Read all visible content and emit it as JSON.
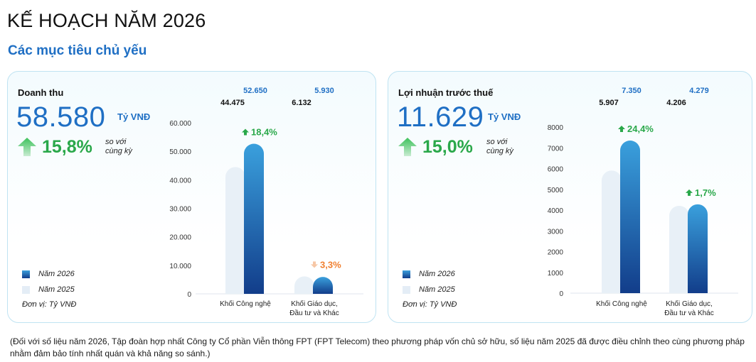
{
  "header": {
    "title": "KẾ HOẠCH NĂM 2026",
    "subtitle": "Các mục tiêu chủ yếu"
  },
  "colors": {
    "accent": "#1f6fc4",
    "growth_green": "#2aa84a",
    "growth_orange": "#f07e2e",
    "bar_2026_top": "#3aa0dd",
    "bar_2026_bottom": "#123d8a",
    "bar_2025": "#e8f0f7",
    "panel_border": "#bfe3f2"
  },
  "panels": [
    {
      "kpi_label": "Doanh thu",
      "kpi_value": "58.580",
      "kpi_unit": "Tỷ VNĐ",
      "growth": "15,8%",
      "growth_note": "so với\ncùng kỳ",
      "legend": [
        "Năm 2026",
        "Năm 2025"
      ],
      "unit_note": "Đơn vị: Tỷ VNĐ",
      "top_values": [
        {
          "v2026": "52.650",
          "v2025": "44.475"
        },
        {
          "v2026": "5.930",
          "v2025": "6.132"
        }
      ],
      "tick_labels": [
        "0",
        "10.000",
        "20.000",
        "30.000",
        "40.000",
        "50.000",
        "60.000"
      ],
      "category_labels": [
        [
          "Khối Công nghệ"
        ],
        [
          "Khối Giáo dục,",
          "Đầu tư và Khác"
        ]
      ],
      "bar_growth_labels": [
        {
          "text": "18,4%",
          "direction": "up"
        },
        {
          "text": "3,3%",
          "direction": "down"
        }
      ]
    },
    {
      "kpi_label": "Lợi nhuận trước thuế",
      "kpi_value": "11.629",
      "kpi_unit": "Tỷ VNĐ",
      "growth": "15,0%",
      "growth_note": "so với\ncùng kỳ",
      "legend": [
        "Năm 2026",
        "Năm 2025"
      ],
      "unit_note": "Đơn vị: Tỷ VNĐ",
      "top_values": [
        {
          "v2026": "7.350",
          "v2025": "5.907"
        },
        {
          "v2026": "4.279",
          "v2025": "4.206"
        }
      ],
      "tick_labels": [
        "0",
        "1000",
        "2000",
        "3000",
        "4000",
        "5000",
        "6000",
        "7000",
        "8000"
      ],
      "category_labels": [
        [
          "Khối Công nghệ"
        ],
        [
          "Khối Giáo dục,",
          "Đầu tư và Khác"
        ]
      ],
      "bar_growth_labels": [
        {
          "text": "24,4%",
          "direction": "up"
        },
        {
          "text": "1,7%",
          "direction": "up"
        }
      ]
    }
  ],
  "footnote": "(Đối với số liệu năm 2026, Tập đoàn hợp nhất Công ty Cổ phần Viễn thông FPT (FPT Telecom) theo phương pháp vốn chủ sở hữu, số liệu năm 2025 đã được điều chỉnh theo cùng phương pháp nhằm đảm bảo tính nhất quán và khả năng so sánh.)",
  "chart_data": [
    {
      "type": "bar",
      "categories": [
        "Khối Công nghệ",
        "Khối Giáo dục, Đầu tư và Khác"
      ],
      "series": [
        {
          "name": "Năm 2026",
          "values": [
            52650,
            5930
          ]
        },
        {
          "name": "Năm 2025",
          "values": [
            44475,
            6132
          ]
        }
      ],
      "ylim": [
        0,
        60000
      ],
      "grid": false,
      "legend_position": "bottom-left"
    },
    {
      "type": "bar",
      "categories": [
        "Khối Công nghệ",
        "Khối Giáo dục, Đầu tư và Khác"
      ],
      "series": [
        {
          "name": "Năm 2026",
          "values": [
            7350,
            4279
          ]
        },
        {
          "name": "Năm 2025",
          "values": [
            5907,
            4206
          ]
        }
      ],
      "ylim": [
        0,
        8000
      ],
      "grid": false,
      "legend_position": "bottom-left"
    }
  ]
}
